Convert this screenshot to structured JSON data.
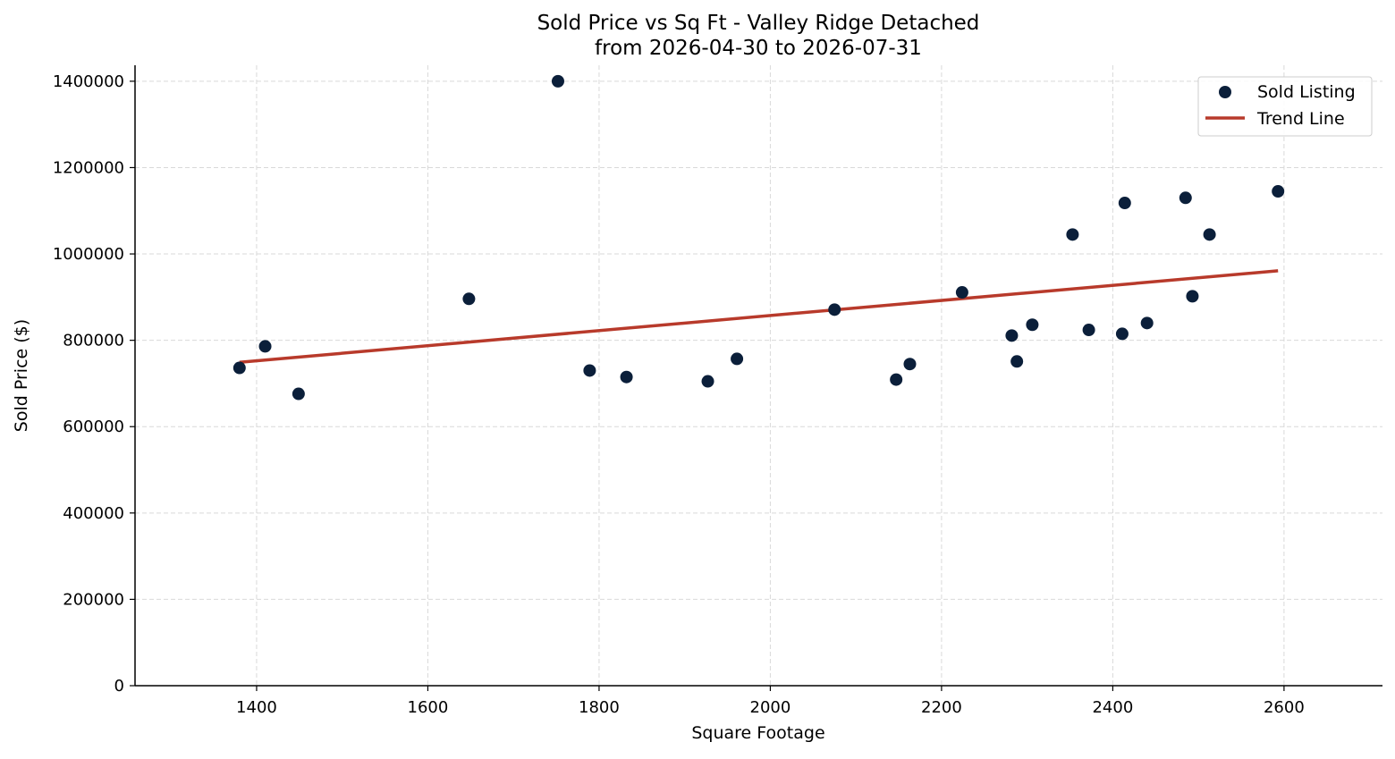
{
  "chart_data": {
    "type": "scatter",
    "title": "Sold Price vs Sq Ft - Valley Ridge Detached",
    "subtitle": "from 2026-04-30 to 2026-07-31",
    "xlabel": "Square Footage",
    "ylabel": "Sold Price ($)",
    "xlim": [
      1258,
      2715
    ],
    "ylim": [
      0,
      1437000
    ],
    "x_ticks": [
      1400,
      1600,
      1800,
      2000,
      2200,
      2400,
      2600
    ],
    "x_tick_labels": [
      "1400",
      "1600",
      "1800",
      "2000",
      "2200",
      "2400",
      "2600"
    ],
    "y_ticks": [
      0,
      200000,
      400000,
      600000,
      800000,
      1000000,
      1200000,
      1400000
    ],
    "y_tick_labels": [
      "0",
      "200000",
      "400000",
      "600000",
      "800000",
      "1000000",
      "1200000",
      "1400000"
    ],
    "grid": true,
    "legend_position": "top-right",
    "series": [
      {
        "name": "Sold Listing",
        "kind": "scatter",
        "color": "#0b1f3a",
        "points": [
          {
            "x": 1380,
            "y": 736000
          },
          {
            "x": 1410,
            "y": 786000
          },
          {
            "x": 1449,
            "y": 676000
          },
          {
            "x": 1648,
            "y": 896000
          },
          {
            "x": 1752,
            "y": 1400000
          },
          {
            "x": 1789,
            "y": 730000
          },
          {
            "x": 1832,
            "y": 715000
          },
          {
            "x": 1927,
            "y": 705000
          },
          {
            "x": 1961,
            "y": 757000
          },
          {
            "x": 2075,
            "y": 871000
          },
          {
            "x": 2147,
            "y": 709000
          },
          {
            "x": 2163,
            "y": 745000
          },
          {
            "x": 2224,
            "y": 911000
          },
          {
            "x": 2282,
            "y": 811000
          },
          {
            "x": 2288,
            "y": 751000
          },
          {
            "x": 2306,
            "y": 836000
          },
          {
            "x": 2353,
            "y": 1045000
          },
          {
            "x": 2372,
            "y": 824000
          },
          {
            "x": 2411,
            "y": 815000
          },
          {
            "x": 2414,
            "y": 1118000
          },
          {
            "x": 2440,
            "y": 840000
          },
          {
            "x": 2485,
            "y": 1130000
          },
          {
            "x": 2493,
            "y": 902000
          },
          {
            "x": 2513,
            "y": 1045000
          },
          {
            "x": 2593,
            "y": 1145000
          }
        ]
      },
      {
        "name": "Trend Line",
        "kind": "line",
        "color": "#b83a2b",
        "points": [
          {
            "x": 1380,
            "y": 749000
          },
          {
            "x": 2593,
            "y": 961000
          }
        ]
      }
    ]
  }
}
